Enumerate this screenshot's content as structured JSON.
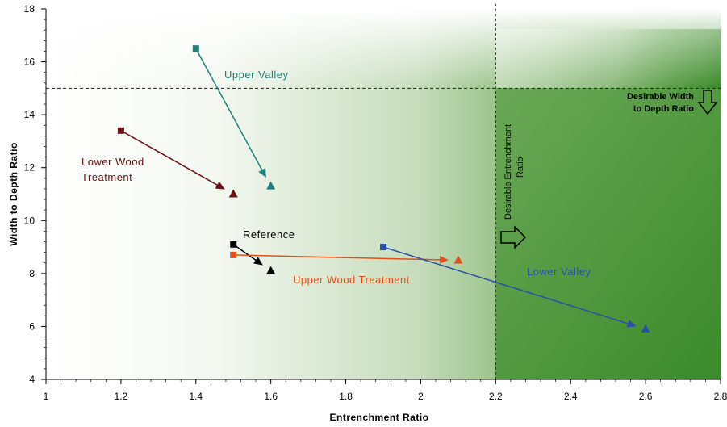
{
  "chart_data": {
    "type": "scatter",
    "xlabel": "Entrenchment Ratio",
    "ylabel": "Width to Depth Ratio",
    "xlim": [
      1,
      2.8
    ],
    "ylim": [
      4,
      18
    ],
    "x_ticks": [
      "1",
      "1.2",
      "1.4",
      "1.6",
      "1.8",
      "2",
      "2.2",
      "2.4",
      "2.6",
      "2.8"
    ],
    "y_ticks": [
      "4",
      "6",
      "8",
      "10",
      "12",
      "14",
      "16",
      "18"
    ],
    "x_minor_step": 0.04,
    "y_minor_step": 0.4,
    "background": "green gradient increasing toward high entrenchment ratio; solid region right of 2.2 below 15",
    "series": [
      {
        "name": "Upper Valley",
        "color": "#1f7f7a",
        "start": {
          "x": 1.4,
          "y": 16.5
        },
        "end": {
          "x": 1.6,
          "y": 11.3
        }
      },
      {
        "name": "Lower Wood Treatment",
        "color": "#6b1014",
        "start": {
          "x": 1.2,
          "y": 13.4
        },
        "end": {
          "x": 1.5,
          "y": 11.0
        }
      },
      {
        "name": "Reference",
        "color": "#000000",
        "start": {
          "x": 1.5,
          "y": 9.1
        },
        "end": {
          "x": 1.6,
          "y": 8.1
        }
      },
      {
        "name": "Upper Wood Treatment",
        "color": "#e0501c",
        "start": {
          "x": 1.5,
          "y": 8.7
        },
        "end": {
          "x": 2.1,
          "y": 8.5
        }
      },
      {
        "name": "Lower Valley",
        "color": "#2b4fa6",
        "start": {
          "x": 1.9,
          "y": 9.0
        },
        "end": {
          "x": 2.6,
          "y": 5.9
        }
      }
    ],
    "reference_lines": {
      "horizontal": {
        "y": 15,
        "style": "dashed"
      },
      "vertical": {
        "x": 2.2,
        "style": "dashed"
      }
    },
    "annotations": {
      "width_depth": [
        "Desirable Width",
        "to Depth Ratio"
      ],
      "entrenchment": [
        "Desirable Entrenchment",
        "Ratio"
      ]
    }
  },
  "colors": {
    "green_dark": "#3b8a2a",
    "green_light": "#ffffff"
  }
}
